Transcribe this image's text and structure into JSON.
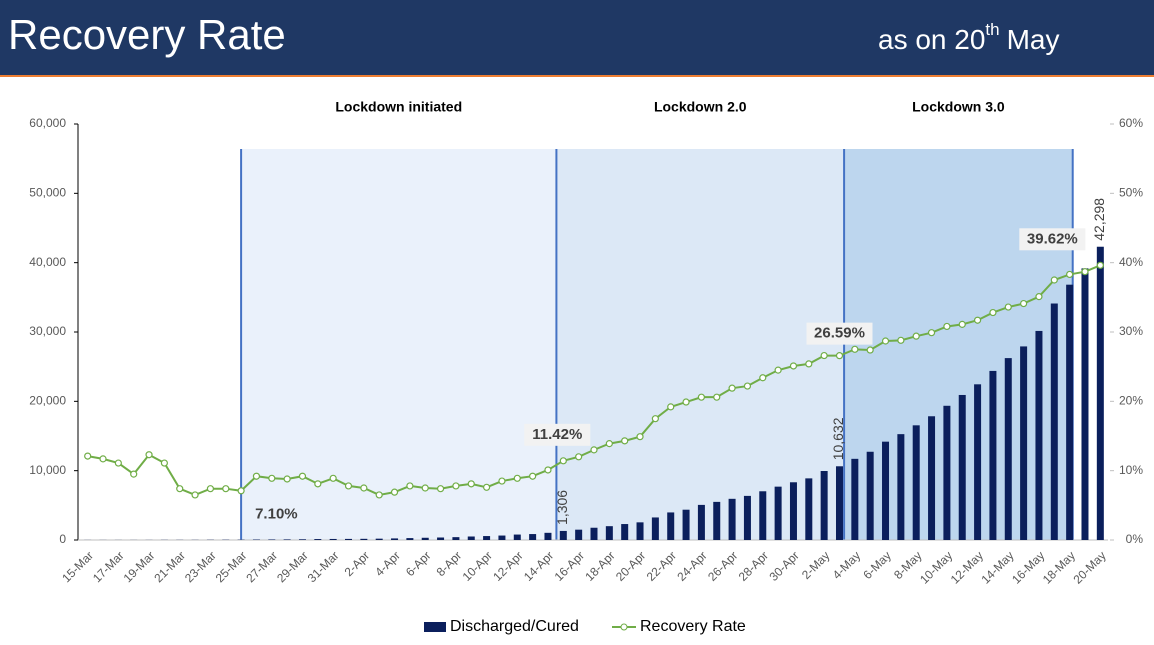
{
  "chart_data": {
    "type": "bar-line",
    "title": "Recovery Rate",
    "subtitle": {
      "text": "as on 20",
      "sup": "th",
      "after": "May"
    },
    "annotations": [
      "Lockdown initiated",
      "Lockdown 2.0",
      "Lockdown 3.0"
    ],
    "categories": [
      "15-Mar",
      null,
      "17-Mar",
      null,
      "19-Mar",
      null,
      "21-Mar",
      null,
      "23-Mar",
      null,
      "25-Mar",
      null,
      "27-Mar",
      null,
      "29-Mar",
      null,
      "31-Mar",
      null,
      "2-Apr",
      null,
      "4-Apr",
      null,
      "6-Apr",
      null,
      "8-Apr",
      null,
      "10-Apr",
      null,
      "12-Apr",
      null,
      "14-Apr",
      null,
      "16-Apr",
      null,
      "18-Apr",
      null,
      "20-Apr",
      null,
      "22-Apr",
      null,
      "24-Apr",
      null,
      "26-Apr",
      null,
      "28-Apr",
      null,
      "30-Apr",
      null,
      "2-May",
      null,
      "4-May",
      null,
      "6-May",
      null,
      "8-May",
      null,
      "10-May",
      null,
      "12-May",
      null,
      "14-May",
      null,
      "16-May",
      null,
      "18-May",
      null,
      "20-May"
    ],
    "series": [
      {
        "name": "Discharged/Cured",
        "color": "#0b1f5c",
        "type": "bar",
        "values": [
          13,
          14,
          14,
          14,
          15,
          23,
          23,
          23,
          35,
          40,
          43,
          66,
          75,
          84,
          102,
          137,
          150,
          157,
          169,
          191,
          229,
          274,
          322,
          359,
          411,
          504,
          568,
          642,
          785,
          857,
          1036,
          1306,
          1489,
          1768,
          1994,
          2301,
          2546,
          3252,
          3975,
          4370,
          5063,
          5498,
          5939,
          6362,
          7027,
          7695,
          8325,
          8889,
          9951,
          10632,
          11707,
          12727,
          14183,
          15267,
          16540,
          17847,
          19358,
          20917,
          22455,
          24386,
          26235,
          27920,
          30153,
          34109,
          36824,
          39174,
          42298
        ],
        "value_labels": [
          null,
          null,
          null,
          null,
          null,
          null,
          null,
          null,
          null,
          null,
          null,
          null,
          null,
          null,
          null,
          null,
          null,
          null,
          null,
          null,
          null,
          null,
          null,
          null,
          null,
          null,
          null,
          null,
          null,
          null,
          null,
          "1,306",
          null,
          null,
          null,
          null,
          null,
          null,
          null,
          null,
          null,
          null,
          null,
          null,
          null,
          null,
          null,
          null,
          null,
          "10,632",
          null,
          null,
          null,
          null,
          null,
          null,
          null,
          null,
          null,
          null,
          null,
          null,
          null,
          null,
          null,
          null,
          "42,298"
        ]
      },
      {
        "name": "Recovery Rate",
        "color": "#70ad47",
        "type": "line",
        "axis": "y2",
        "values": [
          12.1,
          11.7,
          11.1,
          9.5,
          12.3,
          11.1,
          7.4,
          6.5,
          7.4,
          7.4,
          7.1,
          9.2,
          8.9,
          8.8,
          9.2,
          8.1,
          8.9,
          7.8,
          7.5,
          6.5,
          6.9,
          7.8,
          7.5,
          7.4,
          7.8,
          8.1,
          7.6,
          8.5,
          8.9,
          9.2,
          10.1,
          11.42,
          12.0,
          13.0,
          13.9,
          14.3,
          14.9,
          17.5,
          19.2,
          19.9,
          20.6,
          20.6,
          21.9,
          22.2,
          23.4,
          24.5,
          25.1,
          25.4,
          26.6,
          26.59,
          27.5,
          27.4,
          28.7,
          28.8,
          29.4,
          29.9,
          30.8,
          31.1,
          31.7,
          32.8,
          33.6,
          34.1,
          35.1,
          37.5,
          38.3,
          38.7,
          39.62
        ],
        "value_labels": [
          null,
          null,
          null,
          null,
          null,
          null,
          null,
          null,
          null,
          null,
          "7.10%",
          null,
          null,
          null,
          null,
          null,
          null,
          null,
          null,
          null,
          null,
          null,
          null,
          null,
          null,
          null,
          null,
          null,
          null,
          null,
          null,
          "11.42%",
          null,
          null,
          null,
          null,
          null,
          null,
          null,
          null,
          null,
          null,
          null,
          null,
          null,
          null,
          null,
          null,
          null,
          "26.59%",
          null,
          null,
          null,
          null,
          null,
          null,
          null,
          null,
          null,
          null,
          null,
          null,
          null,
          null,
          null,
          null,
          "39.62%"
        ]
      }
    ],
    "ylim": [
      0,
      60000
    ],
    "yticks": [
      0,
      {
        "value": 10000,
        "label": "10,000"
      },
      {
        "value": 20000,
        "label": "20,000"
      },
      {
        "value": 30000,
        "label": "30,000"
      },
      {
        "value": 40000,
        "label": "40,000"
      },
      {
        "value": 50000,
        "label": "50,000"
      },
      {
        "value": 60000,
        "label": "60,000"
      }
    ],
    "y2lim": [
      0,
      60
    ],
    "y2ticks": [
      {
        "value": 0,
        "label": "0%"
      },
      {
        "value": 10,
        "label": "10%"
      },
      {
        "value": 20,
        "label": "20%"
      },
      {
        "value": 30,
        "label": "30%"
      },
      {
        "value": 40,
        "label": "40%"
      },
      {
        "value": 50,
        "label": "50%"
      },
      {
        "value": 60,
        "label": "60%"
      }
    ],
    "legend": "bottom"
  }
}
